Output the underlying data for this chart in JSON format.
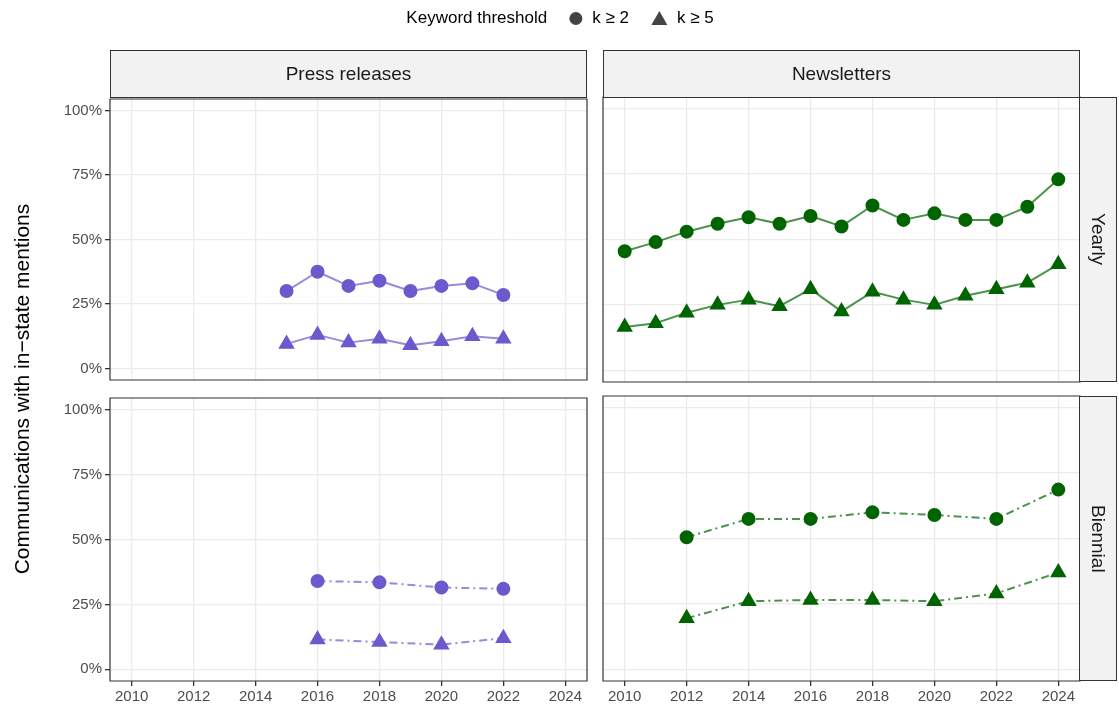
{
  "chart_data": [
    {
      "type": "line",
      "title": "Press releases",
      "ylabel": "Communications with in−state mentions",
      "legend_title": "Keyword threshold",
      "legend": "top",
      "grid": true,
      "line_style": "solid",
      "tick_labels": "y",
      "xlim": [
        2009.3,
        2024.7
      ],
      "xticks": [
        2010,
        2012,
        2014,
        2016,
        2018,
        2020,
        2022,
        2024
      ],
      "ylim": [
        -4.5,
        104.5
      ],
      "yticks": [
        {
          "value": 0,
          "label": "0%"
        },
        {
          "value": 25,
          "label": "25%"
        },
        {
          "value": 50,
          "label": "50%"
        },
        {
          "value": 75,
          "label": "75%"
        },
        {
          "value": 100,
          "label": "100%"
        }
      ],
      "series": [
        {
          "name": "k ≥ 2",
          "color": "#6a5acd",
          "marker": "circle",
          "x": [
            2015,
            2016,
            2017,
            2018,
            2019,
            2020,
            2021,
            2022
          ],
          "values": [
            30,
            37.5,
            32,
            34,
            30,
            32,
            33,
            28.5
          ]
        },
        {
          "name": "k ≥ 5",
          "color": "#6a5acd",
          "marker": "triangle",
          "x": [
            2015,
            2016,
            2017,
            2018,
            2019,
            2020,
            2021,
            2022
          ],
          "values": [
            9.5,
            13,
            10,
            11.5,
            9,
            10.5,
            12.5,
            11.5
          ]
        }
      ]
    },
    {
      "type": "line",
      "title": "Newsletters",
      "y2label": "Yearly",
      "grid": true,
      "line_style": "solid",
      "tick_labels": false,
      "xlim": [
        2009.3,
        2024.7
      ],
      "xticks": [
        2010,
        2012,
        2014,
        2016,
        2018,
        2020,
        2022,
        2024
      ],
      "ylim": [
        -4.5,
        104.5
      ],
      "yticks": [
        0,
        25,
        50,
        75,
        100
      ],
      "series": [
        {
          "color": "#006400",
          "marker": "circle",
          "x": [
            2010,
            2011,
            2012,
            2013,
            2014,
            2015,
            2016,
            2017,
            2018,
            2019,
            2020,
            2021,
            2022,
            2023,
            2024
          ],
          "values": [
            45.5,
            49,
            53,
            56,
            58.5,
            56,
            59,
            55,
            63,
            57.5,
            60,
            57.5,
            57.5,
            62.5,
            73
          ]
        },
        {
          "color": "#006400",
          "marker": "triangle",
          "x": [
            2010,
            2011,
            2012,
            2013,
            2014,
            2015,
            2016,
            2017,
            2018,
            2019,
            2020,
            2021,
            2022,
            2023,
            2024
          ],
          "values": [
            16.5,
            18,
            22,
            25,
            27,
            24.5,
            31,
            22.5,
            30,
            27,
            25,
            28.5,
            31,
            33.5,
            40.5
          ]
        }
      ]
    },
    {
      "type": "line",
      "grid": true,
      "line_style": "dashed",
      "xlim": [
        2009.3,
        2024.7
      ],
      "xticks": [
        2010,
        2012,
        2014,
        2016,
        2018,
        2020,
        2022,
        2024
      ],
      "ylim": [
        -4.5,
        104.5
      ],
      "yticks": [
        {
          "value": 0,
          "label": "0%"
        },
        {
          "value": 25,
          "label": "25%"
        },
        {
          "value": 50,
          "label": "50%"
        },
        {
          "value": 75,
          "label": "75%"
        },
        {
          "value": 100,
          "label": "100%"
        }
      ],
      "series": [
        {
          "color": "#6a5acd",
          "marker": "circle",
          "x": [
            2016,
            2018,
            2020,
            2022
          ],
          "values": [
            34,
            33.5,
            31.5,
            31
          ]
        },
        {
          "color": "#6a5acd",
          "marker": "triangle",
          "x": [
            2016,
            2018,
            2020,
            2022
          ],
          "values": [
            11.5,
            10.5,
            9.5,
            12
          ]
        }
      ]
    },
    {
      "type": "line",
      "y2label": "Biennial",
      "grid": true,
      "line_style": "dashed",
      "tick_labels": "x",
      "xlim": [
        2009.3,
        2024.7
      ],
      "xticks": [
        2010,
        2012,
        2014,
        2016,
        2018,
        2020,
        2022,
        2024
      ],
      "ylim": [
        -4.5,
        104.5
      ],
      "yticks": [
        0,
        25,
        50,
        75,
        100
      ],
      "series": [
        {
          "color": "#006400",
          "marker": "circle",
          "x": [
            2012,
            2014,
            2016,
            2018,
            2020,
            2022,
            2024
          ],
          "values": [
            50.5,
            57.5,
            57.5,
            60,
            59,
            57.5,
            68.7
          ]
        },
        {
          "color": "#006400",
          "marker": "triangle",
          "x": [
            2012,
            2014,
            2016,
            2018,
            2020,
            2022,
            2024
          ],
          "values": [
            19.5,
            26,
            26.5,
            26.5,
            26,
            29,
            37
          ]
        }
      ]
    }
  ]
}
